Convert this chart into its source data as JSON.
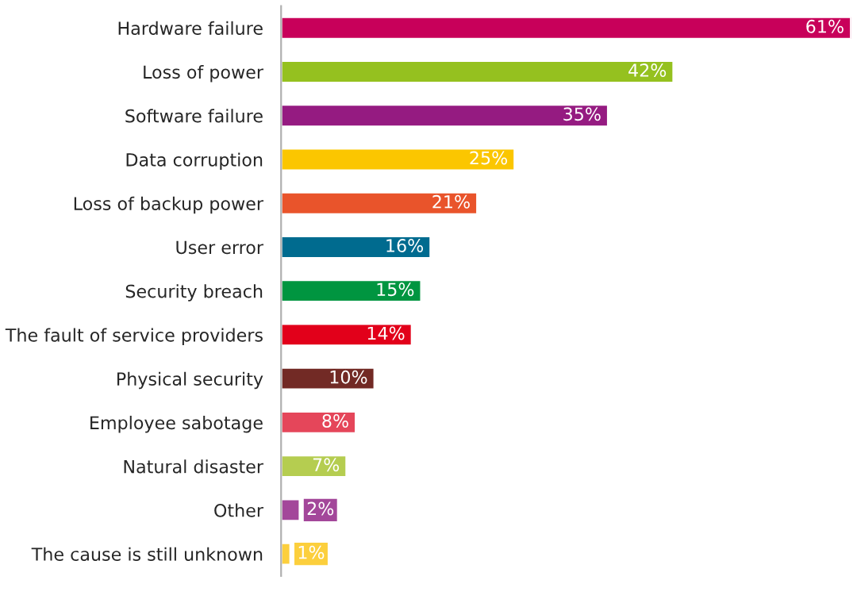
{
  "chart_data": {
    "type": "bar",
    "orientation": "horizontal",
    "categories": [
      "Hardware failure",
      "Loss of power",
      "Software failure",
      "Data corruption",
      "Loss of backup power",
      "User error",
      "Security breach",
      "The fault of service providers",
      "Physical security",
      "Employee sabotage",
      "Natural disaster",
      "Other",
      "The cause is still unknown"
    ],
    "values": [
      61,
      42,
      35,
      25,
      21,
      16,
      15,
      14,
      10,
      8,
      7,
      2,
      1
    ],
    "value_labels": [
      "61%",
      "42%",
      "35%",
      "25%",
      "21%",
      "16%",
      "15%",
      "14%",
      "10%",
      "8%",
      "7%",
      "2%",
      "1%"
    ],
    "colors": [
      "#c8005a",
      "#95c11f",
      "#951b81",
      "#fbc600",
      "#e9542b",
      "#006b8f",
      "#009540",
      "#e2001a",
      "#722a25",
      "#e5465a",
      "#b5cd50",
      "#a3479a",
      "#fccf3d"
    ],
    "grid": false,
    "legend": false
  }
}
